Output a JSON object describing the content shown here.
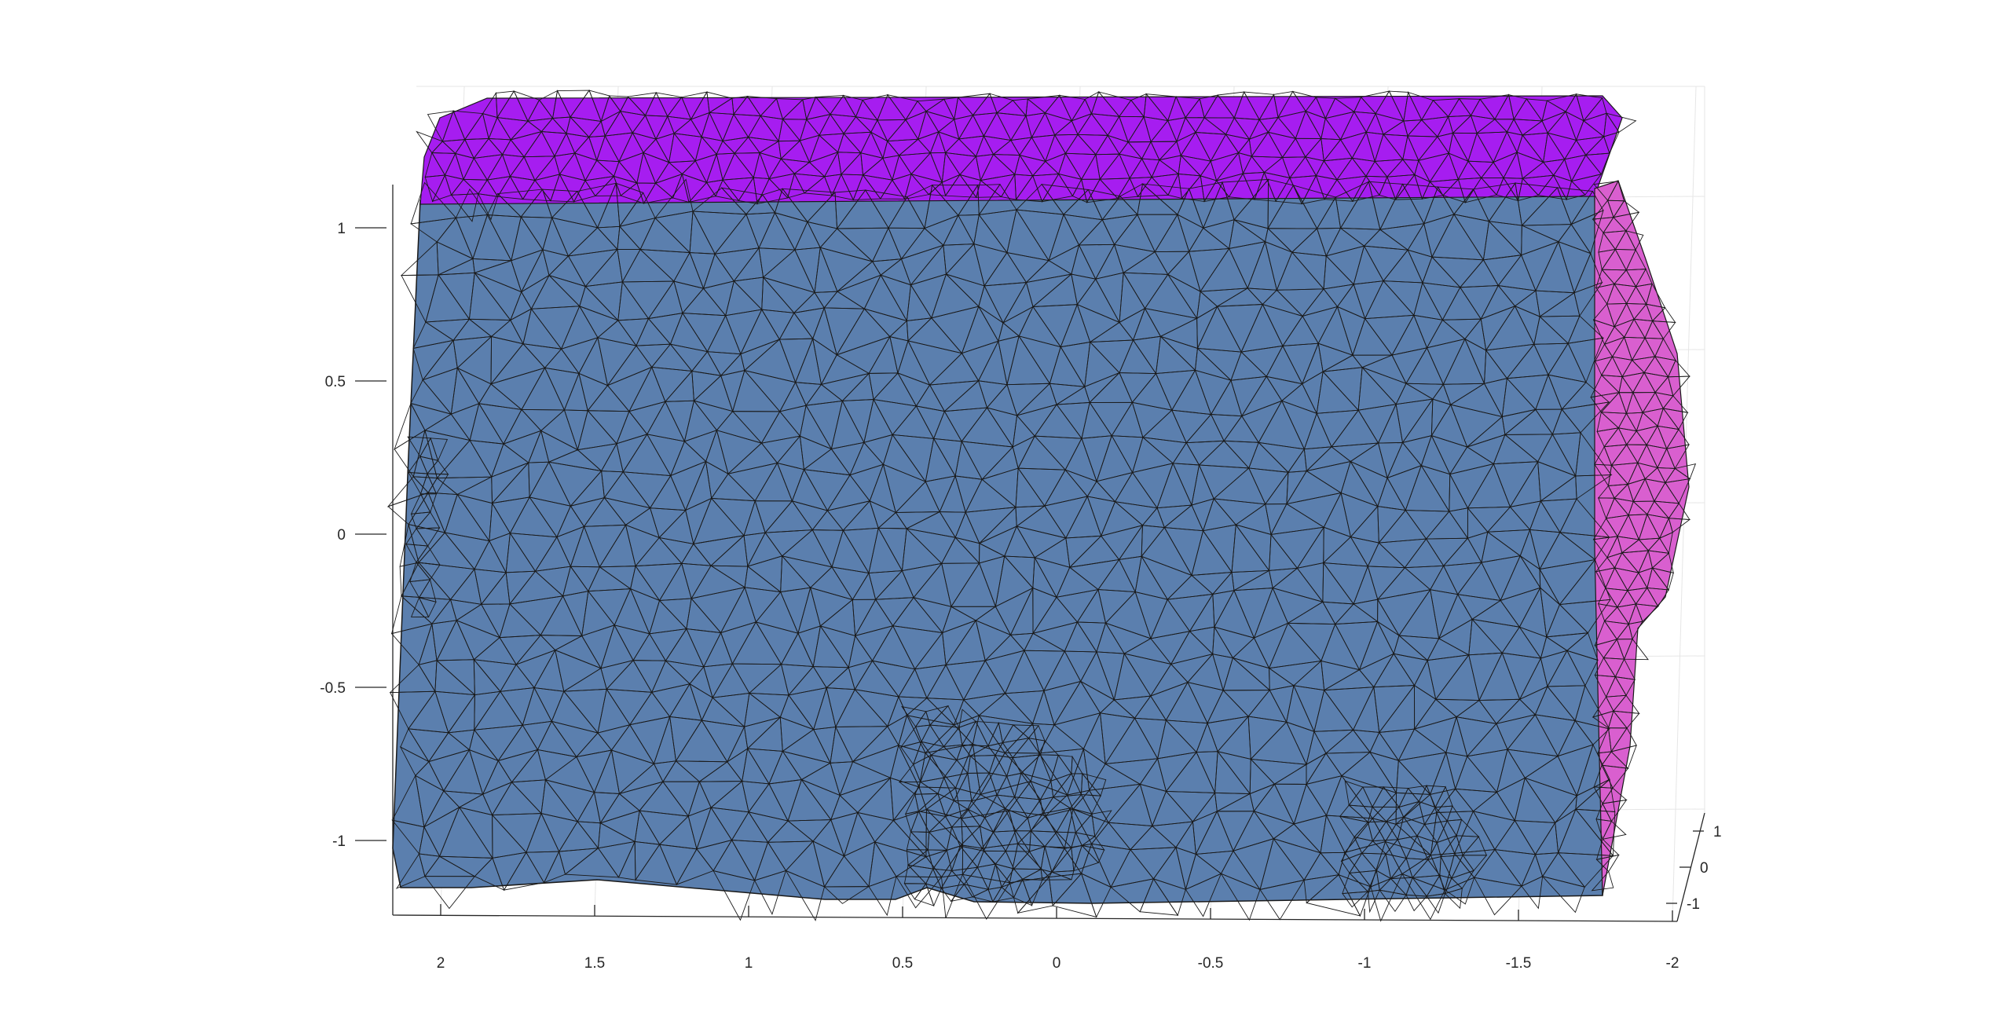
{
  "chart_data": {
    "type": "surface",
    "title": "",
    "xlabel": "",
    "ylabel": "",
    "zlabel": "",
    "grid": true,
    "x_axis": {
      "ticks": [
        2,
        1.5,
        1,
        0.5,
        0,
        -0.5,
        -1,
        -1.5,
        -2
      ],
      "tick_labels": [
        "2",
        "1.5",
        "1",
        "0.5",
        "0",
        "-0.5",
        "-1",
        "-1.5",
        "-2"
      ]
    },
    "y_axis": {
      "ticks": [
        -1,
        0,
        1
      ],
      "tick_labels": [
        "-1",
        "0",
        "1"
      ]
    },
    "z_axis": {
      "ticks": [
        1,
        0.5,
        0,
        -0.5,
        -1
      ],
      "tick_labels": [
        "1",
        "0.5",
        "0",
        "-0.5",
        "-1"
      ],
      "lim": [
        -1.25,
        1.25
      ]
    },
    "surface": {
      "description_color": "#5b7fae",
      "segment_colors": [
        "#5b7fae",
        "#a61df0",
        "#b3e265",
        "#d95fcf",
        "#2fd48f",
        "#8abcb8",
        "#2a86c8",
        "#d11668",
        "#b85c5c",
        "#21a558",
        "#f6c3a5",
        "#db7711",
        "#6b7a0a",
        "#f5cc1a",
        "#1a3fd6",
        "#7cd93c",
        "#52d6f5",
        "#e6e29a",
        "#3b3d33",
        "#f25cc4",
        "#1ac6a8"
      ]
    }
  }
}
